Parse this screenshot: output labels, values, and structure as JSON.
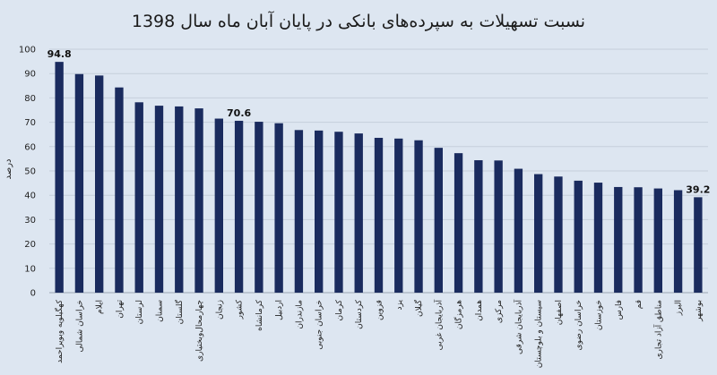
{
  "chart_data": {
    "type": "bar",
    "title": "نسبت تسهیلات به سپرده‌های بانکی در پایان آبان ماه سال 1398",
    "ylabel": "درصد",
    "xlabel": "",
    "ylim": [
      0,
      100
    ],
    "yticks": [
      0,
      10,
      20,
      30,
      40,
      50,
      60,
      70,
      80,
      90,
      100
    ],
    "grid": true,
    "legend": "none",
    "bar_color": "#1a2b5e",
    "background_color": "#dde6f1",
    "categories": [
      "کهگیلویه وبویراحمد",
      "خراسان شمالی",
      "ایلام",
      "تهران",
      "لرستان",
      "سمنان",
      "گلستان",
      "چهارمحال‌وبختیاری",
      "زنجان",
      "کشور",
      "کرمانشاه",
      "اردبیل",
      "مازندران",
      "خراسان جنوبی",
      "کرمان",
      "کردستان",
      "قزوین",
      "یزد",
      "گیلان",
      "آذربایجان غربی",
      "هرمزگان",
      "همدان",
      "مرکزی",
      "آذربایجان شرقی",
      "سیستان و بلوچستان",
      "اصفهان",
      "خراسان رضوی",
      "خوزستان",
      "فارس",
      "قم",
      "مناطق آزاد تجاری",
      "البرز",
      "بوشهر"
    ],
    "values": [
      94.8,
      89.8,
      89.2,
      84.3,
      78.2,
      76.8,
      76.5,
      75.7,
      71.5,
      70.6,
      70.2,
      69.6,
      66.8,
      66.6,
      66.1,
      65.4,
      63.6,
      63.3,
      62.6,
      59.5,
      57.3,
      54.4,
      54.3,
      50.9,
      48.7,
      47.7,
      46.0,
      45.2,
      43.4,
      43.3,
      42.8,
      42.1,
      39.2
    ],
    "data_labels": [
      {
        "category": "کهگیلویه وبویراحمد",
        "text": "94.8"
      },
      {
        "category": "کشور",
        "text": "70.6"
      },
      {
        "category": "بوشهر",
        "text": "39.2"
      }
    ]
  }
}
